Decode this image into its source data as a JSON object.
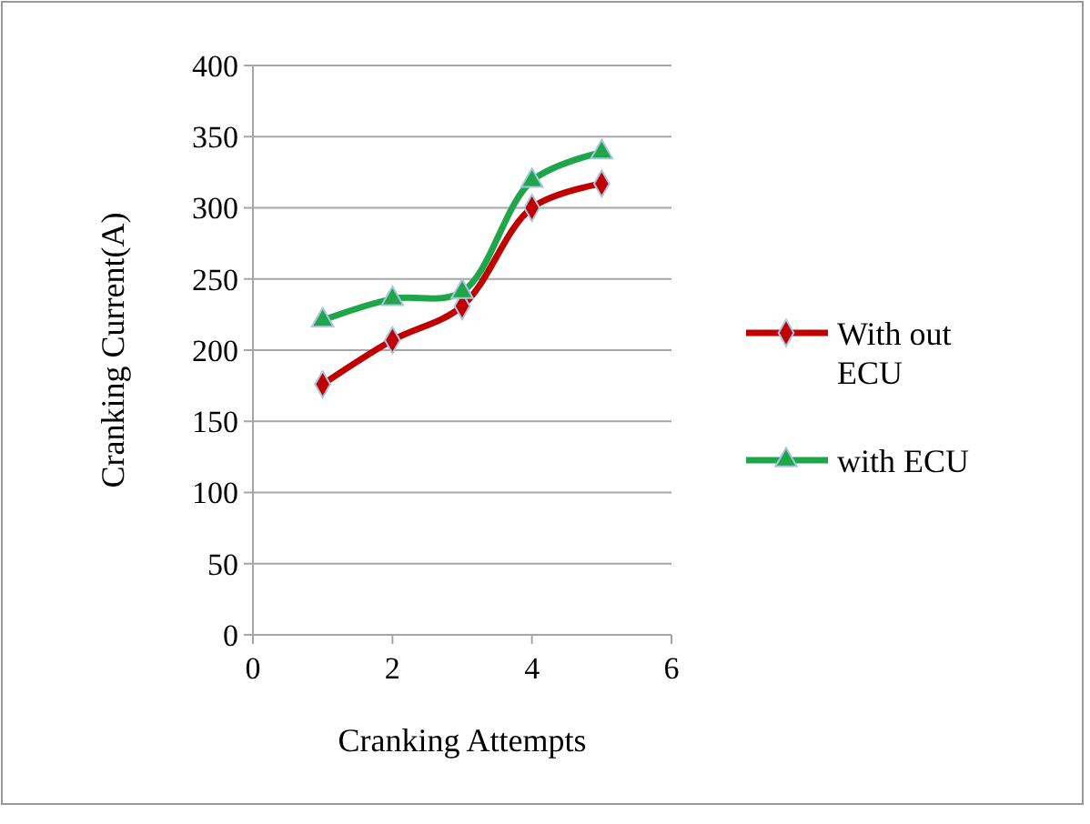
{
  "chart_data": {
    "type": "line",
    "xlabel": "Cranking Attempts",
    "ylabel": "Cranking Current(A)",
    "x": [
      1,
      2,
      3,
      4,
      5
    ],
    "xlim": [
      0,
      6
    ],
    "xticks": [
      0,
      2,
      4,
      6
    ],
    "ylim": [
      0,
      400
    ],
    "yticks": [
      0,
      50,
      100,
      150,
      200,
      250,
      300,
      350,
      400
    ],
    "grid": "y",
    "legend": "right",
    "line_style": "solid",
    "series": [
      {
        "name": "With out ECU",
        "color": "#c00000",
        "marker": "diamond",
        "values": [
          176,
          207,
          231,
          300,
          317
        ]
      },
      {
        "name": "with ECU",
        "color": "#1fa64a",
        "marker": "triangle",
        "values": [
          221,
          236,
          241,
          319,
          339
        ]
      }
    ]
  }
}
